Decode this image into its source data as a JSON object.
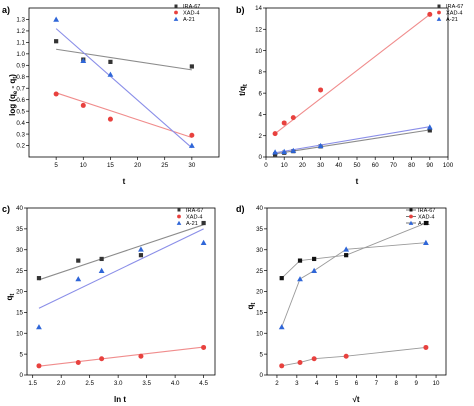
{
  "figure": {
    "panels": [
      {
        "panel_label": "a)",
        "ylabel_main": "log (q",
        "ylabel_sub1": "e",
        "ylabel_mid": " - q",
        "ylabel_sub2": "t",
        "ylabel_end": ")",
        "xlabel": "t"
      },
      {
        "panel_label": "b)",
        "ylabel_main": "t/q",
        "ylabel_sub1": "t",
        "xlabel": "t"
      },
      {
        "panel_label": "c)",
        "ylabel_main": "q",
        "ylabel_sub1": "t",
        "xlabel": "ln t"
      },
      {
        "panel_label": "d)",
        "ylabel_main": "q",
        "ylabel_sub1": "t",
        "xlabel": "√t"
      }
    ]
  },
  "chart_data": [
    {
      "type": "scatter",
      "panel": "a)",
      "xlim": [
        0,
        35
      ],
      "ylim": [
        0.1,
        1.4
      ],
      "xticks": [
        5,
        10,
        15,
        20,
        25,
        30
      ],
      "yticks": [
        0.2,
        0.3,
        0.4,
        0.5,
        0.6,
        0.7,
        0.8,
        0.9,
        1.0,
        1.1,
        1.2,
        1.3
      ],
      "grid": false,
      "legend_position": "top-right",
      "series": [
        {
          "name": "IRA-67",
          "color": "#333333",
          "marker": "square",
          "x": [
            5,
            10,
            15,
            30
          ],
          "y": [
            1.11,
            0.95,
            0.93,
            0.89
          ],
          "fit": [
            [
              5,
              1.04
            ],
            [
              30,
              0.86
            ]
          ],
          "fit_color": "#8c8c8c"
        },
        {
          "name": "XAD-4",
          "color": "#e8413e",
          "marker": "circle",
          "x": [
            5,
            10,
            15,
            30
          ],
          "y": [
            0.65,
            0.55,
            0.43,
            0.29
          ],
          "fit": [
            [
              5,
              0.66
            ],
            [
              30,
              0.27
            ]
          ],
          "fit_color": "#f08c8c"
        },
        {
          "name": "A-21",
          "color": "#2f66d8",
          "marker": "triangle",
          "x": [
            5,
            10,
            15,
            30
          ],
          "y": [
            1.3,
            0.94,
            0.82,
            0.2
          ],
          "fit": [
            [
              5,
              1.22
            ],
            [
              30,
              0.18
            ]
          ],
          "fit_color": "#8a8ee8"
        }
      ]
    },
    {
      "type": "scatter",
      "panel": "b)",
      "xlim": [
        0,
        100
      ],
      "ylim": [
        0,
        14
      ],
      "xticks": [
        0,
        10,
        20,
        30,
        40,
        50,
        60,
        70,
        80,
        90,
        100
      ],
      "yticks": [
        0,
        2,
        4,
        6,
        8,
        10,
        12,
        14
      ],
      "grid": false,
      "legend_position": "top-left",
      "series": [
        {
          "name": "IRA-67",
          "color": "#333333",
          "marker": "square",
          "x": [
            5,
            10,
            15,
            30,
            90
          ],
          "y": [
            0.25,
            0.4,
            0.55,
            1.0,
            2.5
          ],
          "fit": [
            [
              5,
              0.3
            ],
            [
              90,
              2.55
            ]
          ],
          "fit_color": "#8c8c8c"
        },
        {
          "name": "XAD-4",
          "color": "#e8413e",
          "marker": "circle",
          "x": [
            5,
            10,
            15,
            30,
            90
          ],
          "y": [
            2.2,
            3.2,
            3.7,
            6.3,
            13.4
          ],
          "fit": [
            [
              5,
              2.2
            ],
            [
              90,
              13.4
            ]
          ],
          "fit_color": "#f08c8c"
        },
        {
          "name": "A-21",
          "color": "#2f66d8",
          "marker": "triangle",
          "x": [
            5,
            10,
            15,
            30,
            90
          ],
          "y": [
            0.45,
            0.5,
            0.6,
            1.05,
            2.8
          ],
          "fit": [
            [
              5,
              0.4
            ],
            [
              90,
              2.85
            ]
          ],
          "fit_color": "#8a8ee8"
        }
      ]
    },
    {
      "type": "scatter",
      "panel": "c)",
      "xlim": [
        1.4,
        4.7
      ],
      "ylim": [
        0,
        40
      ],
      "xticks": [
        1.5,
        2.0,
        2.5,
        3.0,
        3.5,
        4.0,
        4.5
      ],
      "yticks": [
        0,
        5,
        10,
        15,
        20,
        25,
        30,
        35,
        40
      ],
      "grid": false,
      "legend_position": "top-left",
      "series": [
        {
          "name": "IRA-67",
          "color": "#333333",
          "marker": "square",
          "x": [
            1.61,
            2.3,
            2.71,
            3.4,
            4.5
          ],
          "y": [
            23.2,
            27.4,
            27.8,
            28.7,
            36.4
          ],
          "fit": [
            [
              1.61,
              22.8
            ],
            [
              4.5,
              36.0
            ]
          ],
          "fit_color": "#8c8c8c"
        },
        {
          "name": "XAD-4",
          "color": "#e8413e",
          "marker": "circle",
          "x": [
            1.61,
            2.3,
            2.71,
            3.4,
            4.5
          ],
          "y": [
            2.2,
            3.0,
            3.9,
            4.5,
            6.6
          ],
          "fit": [
            [
              1.61,
              2.1
            ],
            [
              4.5,
              6.7
            ]
          ],
          "fit_color": "#f08c8c"
        },
        {
          "name": "A-21",
          "color": "#2f66d8",
          "marker": "triangle",
          "x": [
            1.61,
            2.3,
            2.71,
            3.4,
            4.5
          ],
          "y": [
            11.5,
            23.0,
            25.0,
            30.1,
            31.7
          ],
          "fit": [
            [
              1.61,
              16.0
            ],
            [
              4.5,
              35.0
            ]
          ],
          "fit_color": "#8a8ee8"
        }
      ]
    },
    {
      "type": "line",
      "panel": "d)",
      "xlim": [
        1.5,
        10.5
      ],
      "ylim": [
        0,
        40
      ],
      "xticks": [
        2,
        3,
        4,
        5,
        6,
        7,
        8,
        9,
        10
      ],
      "yticks": [
        0,
        5,
        10,
        15,
        20,
        25,
        30,
        35,
        40
      ],
      "grid": false,
      "legend_position": "top-right",
      "series": [
        {
          "name": "IRA-67",
          "color": "#111111",
          "marker": "square",
          "x": [
            2.24,
            3.16,
            3.87,
            5.48,
            9.49
          ],
          "y": [
            23.2,
            27.4,
            27.8,
            28.7,
            36.4
          ]
        },
        {
          "name": "XAD-4",
          "color": "#e8413e",
          "marker": "circle",
          "x": [
            2.24,
            3.16,
            3.87,
            5.48,
            9.49
          ],
          "y": [
            2.2,
            3.0,
            3.9,
            4.5,
            6.6
          ]
        },
        {
          "name": "A-21",
          "color": "#2f66d8",
          "marker": "triangle",
          "x": [
            2.24,
            3.16,
            3.87,
            5.48,
            9.49
          ],
          "y": [
            11.5,
            23.0,
            25.0,
            30.1,
            31.7
          ]
        }
      ]
    }
  ]
}
